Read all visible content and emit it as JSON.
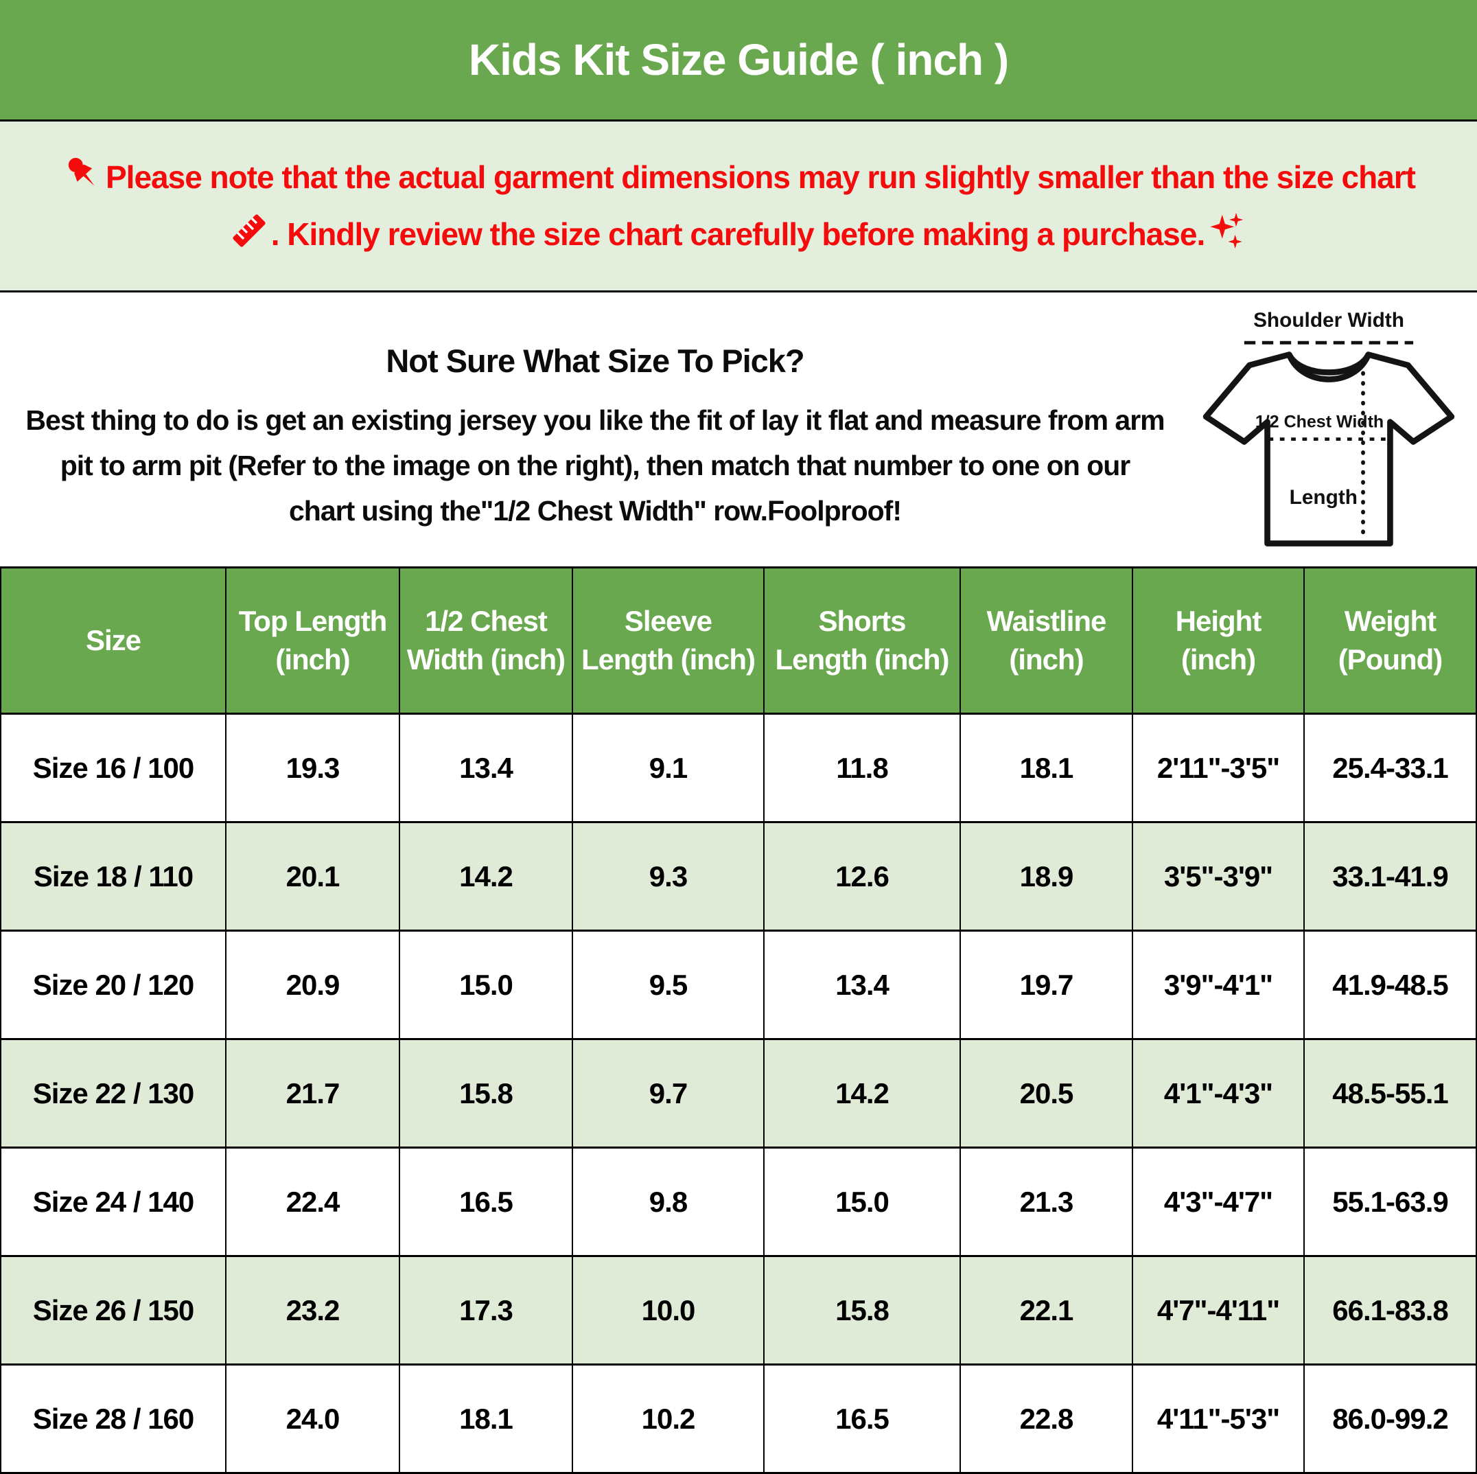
{
  "title": "Kids Kit Size Guide ( inch )",
  "notice": {
    "line1": "Please note that the actual garment dimensions may run slightly smaller than the size chart",
    "line2": ". Kindly review the size chart carefully before making a purchase."
  },
  "fit_help": {
    "heading": "Not Sure What Size To Pick?",
    "body": "Best thing to do is get an existing jersey you like the fit of lay it flat and measure from arm pit to arm pit (Refer to the image on the right), then match that number to one on our chart using the\"1/2 Chest Width\" row.Foolproof!"
  },
  "diagram": {
    "shoulder_label": "Shoulder Width",
    "chest_label": "1/2 Chest Width",
    "length_label": "Length"
  },
  "size_table": {
    "columns": [
      "Size",
      "Top Length\n(inch)",
      "1/2 Chest\nWidth (inch)",
      "Sleeve\nLength (inch)",
      "Shorts\nLength (inch)",
      "Waistline\n(inch)",
      "Height\n(inch)",
      "Weight\n(Pound)"
    ],
    "rows": [
      [
        "Size 16 / 100",
        "19.3",
        "13.4",
        "9.1",
        "11.8",
        "18.1",
        "2'11\"-3'5\"",
        "25.4-33.1"
      ],
      [
        "Size 18 / 110",
        "20.1",
        "14.2",
        "9.3",
        "12.6",
        "18.9",
        "3'5\"-3'9\"",
        "33.1-41.9"
      ],
      [
        "Size 20 / 120",
        "20.9",
        "15.0",
        "9.5",
        "13.4",
        "19.7",
        "3'9\"-4'1\"",
        "41.9-48.5"
      ],
      [
        "Size 22 / 130",
        "21.7",
        "15.8",
        "9.7",
        "14.2",
        "20.5",
        "4'1\"-4'3\"",
        "48.5-55.1"
      ],
      [
        "Size 24 / 140",
        "22.4",
        "16.5",
        "9.8",
        "15.0",
        "21.3",
        "4'3\"-4'7\"",
        "55.1-63.9"
      ],
      [
        "Size 26 / 150",
        "23.2",
        "17.3",
        "10.0",
        "15.8",
        "22.1",
        "4'7\"-4'11\"",
        "66.1-83.8"
      ],
      [
        "Size 28 / 160",
        "24.0",
        "18.1",
        "10.2",
        "16.5",
        "22.8",
        "4'11\"-5'3\"",
        "86.0-99.2"
      ]
    ]
  },
  "colors": {
    "header_green": "#6aa84f",
    "notice_bg": "#e4eedd",
    "row_alt_green": "#dfead7",
    "accent_red": "#f40b0b"
  }
}
